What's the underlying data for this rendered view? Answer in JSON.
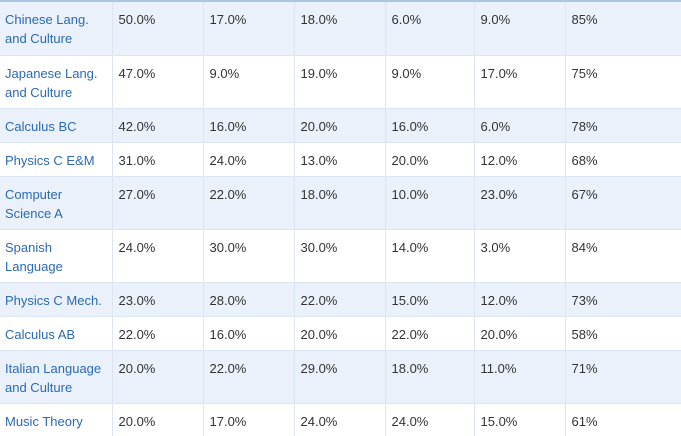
{
  "table": {
    "rows": [
      {
        "course": "Chinese Lang. and Culture",
        "cells": [
          "50.0%",
          "17.0%",
          "18.0%",
          "6.0%",
          "9.0%",
          "85%"
        ]
      },
      {
        "course": "Japanese Lang. and Culture",
        "cells": [
          "47.0%",
          "9.0%",
          "19.0%",
          "9.0%",
          "17.0%",
          "75%"
        ]
      },
      {
        "course": "Calculus BC",
        "cells": [
          "42.0%",
          "16.0%",
          "20.0%",
          "16.0%",
          "6.0%",
          "78%"
        ]
      },
      {
        "course": "Physics C E&M",
        "cells": [
          "31.0%",
          "24.0%",
          "13.0%",
          "20.0%",
          "12.0%",
          "68%"
        ]
      },
      {
        "course": "Computer Science A",
        "cells": [
          "27.0%",
          "22.0%",
          "18.0%",
          "10.0%",
          "23.0%",
          "67%"
        ]
      },
      {
        "course": "Spanish Language",
        "cells": [
          "24.0%",
          "30.0%",
          "30.0%",
          "14.0%",
          "3.0%",
          "84%"
        ]
      },
      {
        "course": "Physics C Mech.",
        "cells": [
          "23.0%",
          "28.0%",
          "22.0%",
          "15.0%",
          "12.0%",
          "73%"
        ]
      },
      {
        "course": "Calculus AB",
        "cells": [
          "22.0%",
          "16.0%",
          "20.0%",
          "22.0%",
          "20.0%",
          "58%"
        ]
      },
      {
        "course": "Italian Language and Culture",
        "cells": [
          "20.0%",
          "22.0%",
          "29.0%",
          "18.0%",
          "11.0%",
          "71%"
        ]
      },
      {
        "course": "Music Theory",
        "cells": [
          "20.0%",
          "17.0%",
          "24.0%",
          "24.0%",
          "15.0%",
          "61%"
        ]
      }
    ]
  }
}
